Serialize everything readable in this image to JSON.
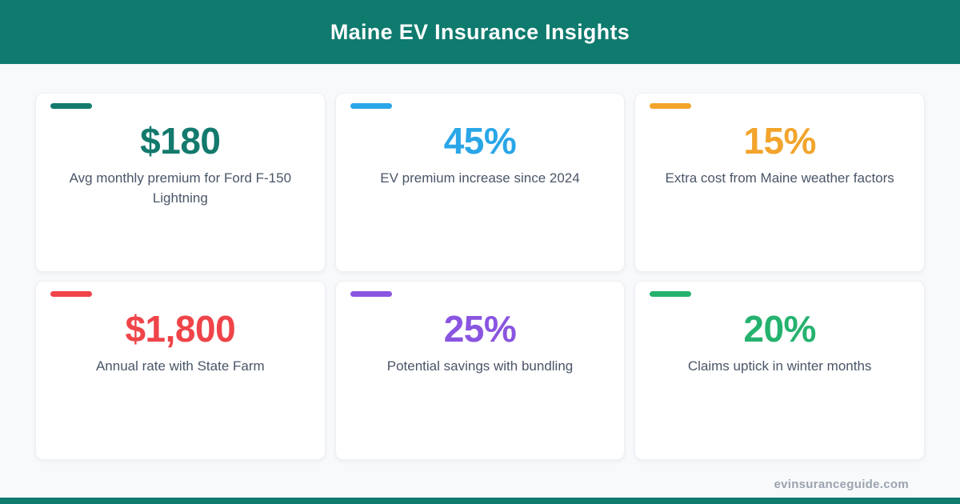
{
  "header": {
    "title": "Maine EV Insurance Insights"
  },
  "theme": {
    "header_bg": "#0f7a6e",
    "page_bg": "#f7f9fb",
    "card_bg": "#ffffff",
    "label_color": "#4a5568",
    "footer_text_color": "#9aa3af",
    "bottom_bar_color": "#0f7a6e"
  },
  "cards": [
    {
      "value": "$180",
      "label": "Avg monthly premium for Ford F-150 Lightning",
      "color": "#137a6d"
    },
    {
      "value": "45%",
      "label": "EV premium increase since 2024",
      "color": "#2aa6e8"
    },
    {
      "value": "15%",
      "label": "Extra cost from Maine weather factors",
      "color": "#f2a42c"
    },
    {
      "value": "$1,800",
      "label": "Annual rate with State Farm",
      "color": "#ef4449"
    },
    {
      "value": "25%",
      "label": "Potential savings with bundling",
      "color": "#8a55e0"
    },
    {
      "value": "20%",
      "label": "Claims uptick in winter months",
      "color": "#25b26e"
    }
  ],
  "footer": {
    "website": "evinsuranceguide.com"
  },
  "chart_data": {
    "type": "table",
    "title": "Maine EV Insurance Insights",
    "columns": [
      "value",
      "description"
    ],
    "rows": [
      [
        "$180",
        "Avg monthly premium for Ford F-150 Lightning"
      ],
      [
        "45%",
        "EV premium increase since 2024"
      ],
      [
        "15%",
        "Extra cost from Maine weather factors"
      ],
      [
        "$1,800",
        "Annual rate with State Farm"
      ],
      [
        "25%",
        "Potential savings with bundling"
      ],
      [
        "20%",
        "Claims uptick in winter months"
      ]
    ]
  }
}
